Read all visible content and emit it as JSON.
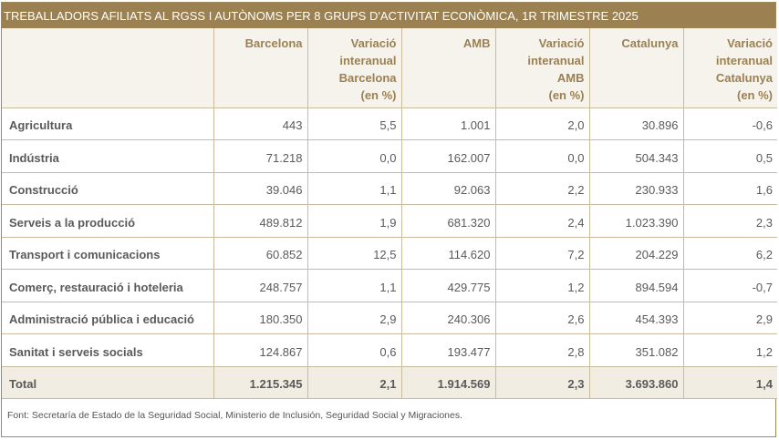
{
  "title": "TREBALLADORS AFILIATS AL RGSS I AUTÒNOMS PER 8 GRUPS D'ACTIVITAT ECONÒMICA, 1R TRIMESTRE 2025",
  "headers": [
    {
      "lines": [
        ""
      ]
    },
    {
      "lines": [
        "Barcelona"
      ]
    },
    {
      "lines": [
        "Variació",
        "interanual",
        "Barcelona",
        "(en %)"
      ]
    },
    {
      "lines": [
        "AMB"
      ]
    },
    {
      "lines": [
        "Variació",
        "interanual",
        "AMB",
        "(en %)"
      ]
    },
    {
      "lines": [
        "Catalunya"
      ]
    },
    {
      "lines": [
        "Variació",
        "interanual",
        "Catalunya",
        "(en %)"
      ]
    }
  ],
  "rows": [
    [
      "Agricultura",
      "443",
      "5,5",
      "1.001",
      "2,0",
      "30.896",
      "-0,6"
    ],
    [
      "Indústria",
      "71.218",
      "0,0",
      "162.007",
      "0,0",
      "504.343",
      "0,5"
    ],
    [
      "Construcció",
      "39.046",
      "1,1",
      "92.063",
      "2,2",
      "230.933",
      "1,6"
    ],
    [
      "Serveis a la producció",
      "489.812",
      "1,9",
      "681.320",
      "2,4",
      "1.023.390",
      "2,3"
    ],
    [
      "Transport i comunicacions",
      "60.852",
      "12,5",
      "114.620",
      "7,2",
      "204.229",
      "6,2"
    ],
    [
      "Comerç, restauració i hoteleria",
      "248.757",
      "1,1",
      "429.775",
      "1,2",
      "894.594",
      "-0,7"
    ],
    [
      "Administració pública i educació",
      "180.350",
      "2,9",
      "240.306",
      "2,6",
      "454.393",
      "2,9"
    ],
    [
      "Sanitat i serveis socials",
      "124.867",
      "0,6",
      "193.477",
      "2,8",
      "351.082",
      "1,2"
    ]
  ],
  "total": [
    "Total",
    "1.215.345",
    "2,1",
    "1.914.569",
    "2,3",
    "3.693.860",
    "1,4"
  ],
  "source": "Font: Secretaría de Estado de la Seguridad Social, Ministerio de Inclusión, Seguridad Social y Migraciones.",
  "colors": {
    "header_band": "#9b8152",
    "header_text": "#9b8152",
    "total_bg": "#f2ede3",
    "grid": "#c8bb9e"
  }
}
